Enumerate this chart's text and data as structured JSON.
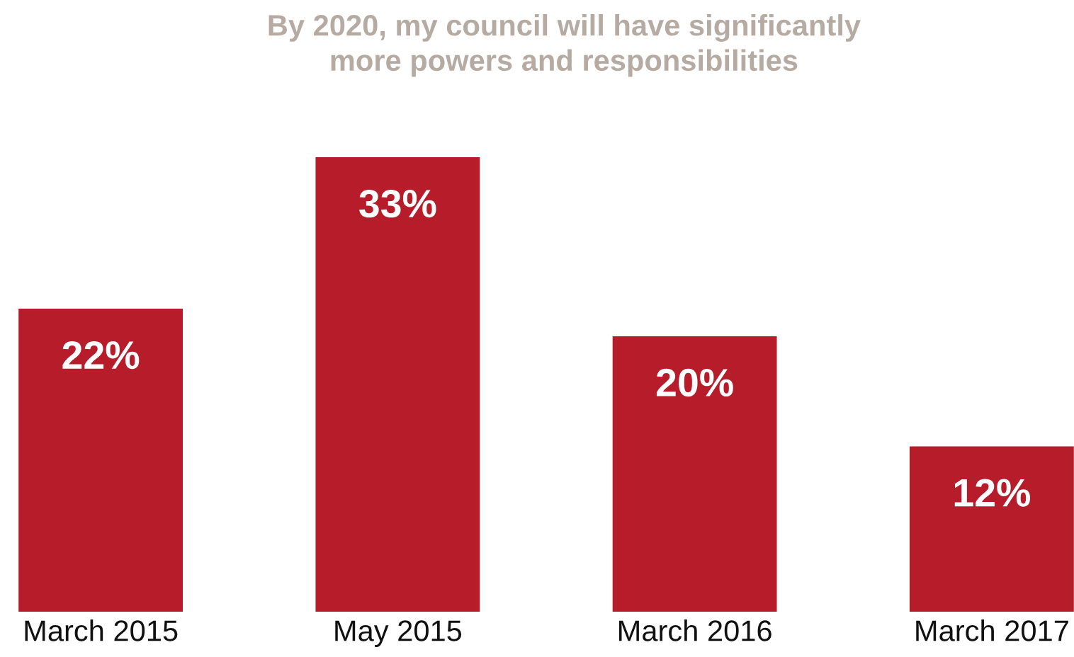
{
  "chart_data": {
    "type": "bar",
    "title": "By 2020, my council will have significantly\nmore powers and responsibilities",
    "categories": [
      "March 2015",
      "May 2015",
      "March 2016",
      "March 2017"
    ],
    "values": [
      22,
      33,
      20,
      12
    ],
    "value_labels": [
      "22%",
      "33%",
      "20%",
      "12%"
    ],
    "color": "#b71c2b",
    "grid": false,
    "legend": false
  }
}
